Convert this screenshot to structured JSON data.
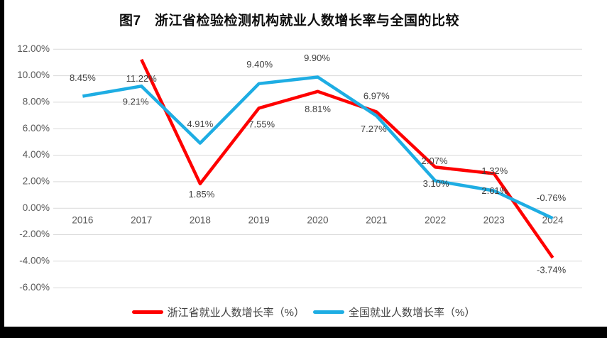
{
  "chart_data": {
    "type": "line",
    "title": "图7　浙江省检验检测机构就业人数增长率与全国的比较",
    "categories": [
      "2016",
      "2017",
      "2018",
      "2019",
      "2020",
      "2021",
      "2022",
      "2023",
      "2024"
    ],
    "series": [
      {
        "id": "zhejiang",
        "name": "浙江省就业人数增长率（%）",
        "color": "#fe0000",
        "values": [
          null,
          11.22,
          1.85,
          7.55,
          8.81,
          7.27,
          3.1,
          2.61,
          -3.74
        ],
        "labels": [
          "",
          "11.22%",
          "1.85%",
          "7.55%",
          "8.81%",
          "7.27%",
          "3.10%",
          "2.61%",
          "-3.74%"
        ],
        "label_dx": [
          0,
          0,
          2,
          4,
          0,
          -4,
          1,
          1,
          -2
        ],
        "label_dy": [
          0,
          28,
          16,
          24,
          26,
          25,
          24,
          25,
          18
        ]
      },
      {
        "id": "national",
        "name": "全国就业人数增长率（%）",
        "color": "#1eade3",
        "values": [
          8.45,
          9.21,
          4.91,
          9.4,
          9.9,
          6.97,
          2.07,
          1.32,
          -0.76
        ],
        "labels": [
          "8.45%",
          "9.21%",
          "4.91%",
          "9.40%",
          "9.90%",
          "6.97%",
          "2.07%",
          "1.32%",
          "-0.76%"
        ],
        "label_dx": [
          0,
          -8,
          0,
          1,
          -1,
          0,
          -1,
          1,
          -2
        ],
        "label_dy": [
          -25,
          23,
          -26,
          -26,
          -26,
          -27,
          -27,
          -27,
          -28
        ]
      }
    ],
    "y_ticks": [
      "12.00%",
      "10.00%",
      "8.00%",
      "6.00%",
      "4.00%",
      "2.00%",
      "0.00%",
      "-2.00%",
      "-4.00%",
      "-6.00%"
    ],
    "y_tick_values": [
      12,
      10,
      8,
      6,
      4,
      2,
      0,
      -2,
      -4,
      -6
    ],
    "ylim": [
      -7,
      13
    ],
    "xlabel": "",
    "ylabel": "",
    "grid": true,
    "legend_position": "bottom",
    "colors": {
      "gridline": "#d9d9d9",
      "axis_text": "#595959",
      "data_label_text": "#3f3f3f",
      "background": "#ffffff",
      "page_border": "#000000"
    }
  }
}
